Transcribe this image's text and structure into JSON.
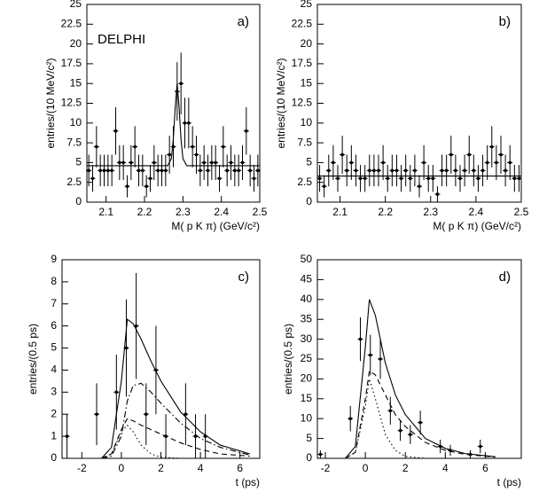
{
  "chart_data": [
    {
      "type": "errorbar",
      "label": "a)",
      "annotation": "DELPHI",
      "xlabel": "M( p K π) (GeV/c²)",
      "ylabel": "entries/(10 MeV/c²)",
      "xlim": [
        2.05,
        2.5
      ],
      "ylim": [
        0,
        25
      ],
      "xticks": [
        2.1,
        2.2,
        2.3,
        2.4,
        2.5
      ],
      "yticks": [
        0,
        2.5,
        5,
        7.5,
        10,
        12.5,
        15,
        17.5,
        20,
        22.5,
        25
      ],
      "points": {
        "x": [
          2.055,
          2.065,
          2.075,
          2.085,
          2.095,
          2.105,
          2.115,
          2.125,
          2.135,
          2.145,
          2.155,
          2.165,
          2.175,
          2.185,
          2.195,
          2.205,
          2.215,
          2.225,
          2.235,
          2.245,
          2.255,
          2.265,
          2.275,
          2.285,
          2.295,
          2.305,
          2.315,
          2.325,
          2.335,
          2.345,
          2.355,
          2.365,
          2.375,
          2.385,
          2.395,
          2.405,
          2.415,
          2.425,
          2.435,
          2.445,
          2.455,
          2.465,
          2.475,
          2.485,
          2.495
        ],
        "values": [
          4,
          3,
          7,
          4,
          4,
          4,
          4,
          9,
          5,
          5,
          2,
          5,
          7,
          4,
          4,
          2,
          3,
          5,
          4,
          4,
          4,
          6,
          7,
          14,
          15,
          10,
          10,
          7,
          6,
          4,
          5,
          4,
          5,
          5,
          3,
          7,
          4,
          5,
          4,
          4,
          5,
          9,
          4,
          3,
          4
        ],
        "errors": [
          2,
          1.7,
          2.6,
          2,
          2,
          2,
          2,
          3,
          2.2,
          2.2,
          1.4,
          2.2,
          2.6,
          2,
          2,
          1.4,
          1.7,
          2.2,
          2,
          2,
          2,
          2.4,
          2.6,
          3.7,
          3.9,
          3.2,
          3.2,
          2.6,
          2.4,
          2,
          2.2,
          2,
          2.2,
          2.2,
          1.7,
          2.6,
          2,
          2.2,
          2,
          2,
          2.2,
          3,
          2,
          1.7,
          2
        ]
      },
      "curves": [
        {
          "dash": "solid",
          "x": [
            2.05,
            2.26,
            2.27,
            2.275,
            2.28,
            2.285,
            2.29,
            2.295,
            2.3,
            2.31,
            2.5
          ],
          "values": [
            4.6,
            4.6,
            5.5,
            8,
            12,
            15,
            12,
            8,
            5.5,
            4.6,
            4.6
          ]
        }
      ]
    },
    {
      "type": "errorbar",
      "label": "b)",
      "xlabel": "M( p K π) (GeV/c²)",
      "ylabel": "entries/(10 MeV/c²)",
      "xlim": [
        2.05,
        2.5
      ],
      "ylim": [
        0,
        25
      ],
      "xticks": [
        2.1,
        2.2,
        2.3,
        2.4,
        2.5
      ],
      "yticks": [
        0,
        2.5,
        5,
        7.5,
        10,
        12.5,
        15,
        17.5,
        20,
        22.5,
        25
      ],
      "points": {
        "x": [
          2.055,
          2.065,
          2.075,
          2.085,
          2.095,
          2.105,
          2.115,
          2.125,
          2.135,
          2.145,
          2.155,
          2.165,
          2.175,
          2.185,
          2.195,
          2.205,
          2.215,
          2.225,
          2.235,
          2.245,
          2.255,
          2.265,
          2.275,
          2.285,
          2.295,
          2.305,
          2.315,
          2.325,
          2.335,
          2.345,
          2.355,
          2.365,
          2.375,
          2.385,
          2.395,
          2.405,
          2.415,
          2.425,
          2.435,
          2.445,
          2.455,
          2.465,
          2.475,
          2.485,
          2.495
        ],
        "values": [
          3,
          2,
          4,
          5,
          3,
          6,
          4,
          5,
          4,
          3,
          3,
          4,
          4,
          4,
          5,
          3,
          4,
          4,
          3,
          4,
          3,
          4,
          2,
          5,
          3,
          3,
          1,
          4,
          4,
          6,
          4,
          3,
          4,
          6,
          4,
          3,
          4,
          5,
          7,
          5,
          6,
          4,
          5,
          3,
          3
        ],
        "errors": [
          1.7,
          1.4,
          2,
          2.2,
          1.7,
          2.4,
          2,
          2.2,
          2,
          1.7,
          1.7,
          2,
          2,
          2,
          2.2,
          1.7,
          2,
          2,
          1.7,
          2,
          1.7,
          2,
          1.4,
          2.2,
          1.7,
          1.7,
          1,
          2,
          2,
          2.4,
          2,
          1.7,
          2,
          2.4,
          2,
          1.7,
          2,
          2.2,
          2.6,
          2.2,
          2.4,
          2,
          2.2,
          1.7,
          1.7
        ]
      },
      "curves": [
        {
          "dash": "solid",
          "x": [
            2.05,
            2.5
          ],
          "values": [
            3.3,
            3.3
          ]
        }
      ]
    },
    {
      "type": "errorbar",
      "label": "c)",
      "xlabel": "t (ps)",
      "ylabel": "entries/(0.5 ps)",
      "xlim": [
        -3,
        7
      ],
      "ylim": [
        0,
        9
      ],
      "xticks": [
        -2,
        0,
        2,
        4,
        6
      ],
      "yticks": [
        0,
        1,
        2,
        3,
        4,
        5,
        6,
        7,
        8,
        9
      ],
      "points": {
        "x": [
          -2.75,
          -1.25,
          -0.25,
          0.25,
          0.75,
          1.25,
          1.75,
          2.25,
          3.25,
          3.75,
          4.25
        ],
        "values": [
          1,
          2,
          3,
          5,
          6,
          2,
          4,
          1,
          2,
          1,
          1
        ],
        "errors": [
          1,
          1.4,
          1.7,
          2.2,
          2.4,
          1.4,
          2,
          1,
          1.4,
          1,
          1
        ]
      },
      "curves": [
        {
          "dash": "solid",
          "x": [
            -1,
            -0.5,
            0,
            0.3,
            0.6,
            1,
            1.5,
            2,
            3,
            4,
            5,
            6.5
          ],
          "values": [
            0,
            0.5,
            3.5,
            6.3,
            6.1,
            5.4,
            4.4,
            3.5,
            2.1,
            1.2,
            0.6,
            0.2
          ]
        },
        {
          "dash": "dashdot",
          "x": [
            -1,
            -0.5,
            0,
            0.3,
            0.6,
            1,
            1.5,
            2,
            3,
            4,
            5,
            6.5
          ],
          "values": [
            0,
            0.1,
            1,
            2.6,
            3.3,
            3.4,
            3,
            2.5,
            1.6,
            0.9,
            0.5,
            0.15
          ]
        },
        {
          "dash": "dashed",
          "x": [
            -1,
            -0.5,
            0,
            0.3,
            0.6,
            1,
            1.5,
            2,
            3,
            4,
            5,
            6.5
          ],
          "values": [
            0,
            0.2,
            1.3,
            1.8,
            1.7,
            1.5,
            1.3,
            1.1,
            0.7,
            0.4,
            0.2,
            0.1
          ]
        },
        {
          "dash": "dotted",
          "x": [
            -1,
            -0.5,
            0,
            0.3,
            0.6,
            1,
            1.5,
            2,
            3,
            4,
            5,
            6.5
          ],
          "values": [
            0,
            0.2,
            1.2,
            1.5,
            1.2,
            0.6,
            0.2,
            0.05,
            0,
            0,
            0,
            0
          ]
        }
      ]
    },
    {
      "type": "errorbar",
      "label": "d)",
      "xlabel": "t (ps)",
      "ylabel": "entries/(0.5 ps)",
      "xlim": [
        -2.4,
        7.8
      ],
      "ylim": [
        0,
        50
      ],
      "xticks": [
        -2,
        0,
        2,
        4,
        6
      ],
      "yticks": [
        0,
        5,
        10,
        15,
        20,
        25,
        30,
        35,
        40,
        45,
        50
      ],
      "points": {
        "x": [
          -2.25,
          -0.75,
          -0.25,
          0.25,
          0.75,
          1.25,
          1.75,
          2.25,
          2.75,
          3.75,
          4.25,
          5.25,
          5.75
        ],
        "values": [
          1,
          10,
          30,
          26,
          25,
          12,
          7,
          6,
          9,
          3,
          2,
          1,
          3
        ],
        "errors": [
          1,
          3.2,
          5.5,
          5.1,
          5,
          3.5,
          2.6,
          2.4,
          3,
          1.7,
          1.4,
          1,
          1.7
        ]
      },
      "curves": [
        {
          "dash": "solid",
          "x": [
            -1,
            -0.5,
            0,
            0.2,
            0.5,
            1,
            1.5,
            2,
            3,
            4,
            5,
            6.5
          ],
          "values": [
            0,
            3,
            28,
            40,
            36,
            24,
            16,
            11,
            5,
            2.5,
            1.2,
            0.4
          ]
        },
        {
          "dash": "dashed",
          "x": [
            -1,
            -0.5,
            0,
            0.2,
            0.5,
            1,
            1.5,
            2,
            3,
            4,
            5,
            6.5
          ],
          "values": [
            0,
            1.5,
            15,
            22,
            21,
            16,
            11,
            8,
            4,
            2,
            1,
            0.3
          ]
        },
        {
          "dash": "dotted",
          "x": [
            -1,
            -0.5,
            0,
            0.2,
            0.5,
            1,
            1.5,
            2,
            3,
            4,
            5,
            6.5
          ],
          "values": [
            0,
            1.5,
            13,
            20,
            15,
            6,
            2,
            0.5,
            0,
            0,
            0,
            0
          ]
        }
      ]
    }
  ]
}
